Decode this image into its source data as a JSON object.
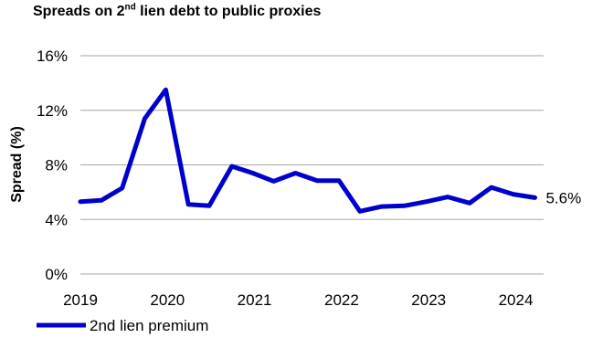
{
  "chart_data": {
    "type": "line",
    "title_main": "Spreads on 2",
    "title_sup": "nd",
    "title_rest": " lien debt to public proxies",
    "ylabel": "Spread (%)",
    "xlabel": "",
    "ylim": [
      0,
      16
    ],
    "y_ticks": [
      0,
      4,
      8,
      12,
      16
    ],
    "y_tick_labels": [
      "0%",
      "4%",
      "8%",
      "12%",
      "16%"
    ],
    "x_ticks": [
      2019,
      2020,
      2021,
      2022,
      2023,
      2024
    ],
    "x_tick_labels": [
      "2019",
      "2020",
      "2021",
      "2022",
      "2023",
      "2024"
    ],
    "xlim": [
      2019,
      2024.32
    ],
    "grid": true,
    "legend_position": "bottom-left",
    "end_label": "5.6%",
    "colors": {
      "series": "#0000cc",
      "grid": "#a6a6a6"
    },
    "series": [
      {
        "name": "2nd lien premium",
        "x": [
          2019.0,
          2019.24,
          2019.48,
          2019.74,
          2019.98,
          2020.24,
          2020.48,
          2020.74,
          2020.98,
          2021.22,
          2021.47,
          2021.72,
          2021.97,
          2022.21,
          2022.46,
          2022.72,
          2022.97,
          2023.22,
          2023.47,
          2023.72,
          2023.97,
          2024.22
        ],
        "values": [
          5.3,
          5.4,
          6.3,
          11.4,
          13.5,
          5.1,
          5.0,
          7.9,
          7.4,
          6.8,
          7.4,
          6.85,
          6.85,
          4.6,
          4.95,
          5.0,
          5.3,
          5.65,
          5.2,
          6.35,
          5.85,
          5.6
        ]
      }
    ]
  }
}
